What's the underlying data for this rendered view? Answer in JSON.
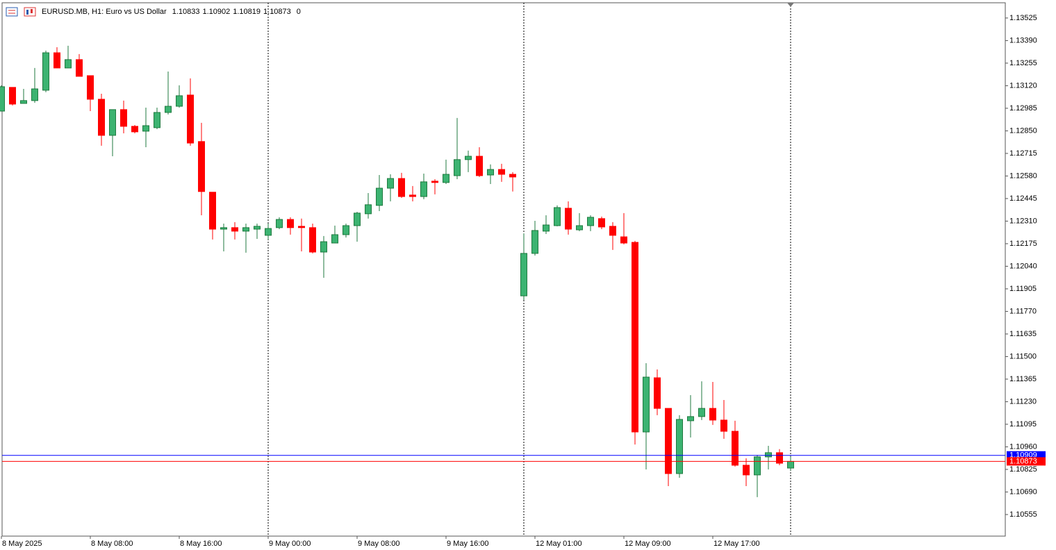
{
  "chart_data": {
    "type": "candlestick",
    "title": "EURUSD.MB, H1:  Euro vs US Dollar",
    "header_value": 0,
    "categories": [
      "8 May 2025",
      null,
      null,
      null,
      null,
      null,
      null,
      null,
      "8 May 08:00",
      null,
      null,
      null,
      null,
      null,
      null,
      null,
      "8 May 16:00",
      null,
      null,
      null,
      null,
      null,
      null,
      null,
      "9 May 00:00",
      null,
      null,
      null,
      null,
      null,
      null,
      null,
      "9 May 08:00",
      null,
      null,
      null,
      null,
      null,
      null,
      null,
      "9 May 16:00",
      null,
      null,
      null,
      null,
      null,
      null,
      null,
      "12 May 01:00",
      null,
      null,
      null,
      null,
      null,
      null,
      null,
      "12 May 09:00",
      null,
      null,
      null,
      null,
      null,
      null,
      null,
      "12 May 17:00",
      null,
      null,
      null,
      null,
      null,
      null,
      null
    ],
    "open": [
      1.12968,
      1.1311,
      1.13014,
      1.13031,
      1.13093,
      1.13317,
      1.13226,
      1.13276,
      1.1318,
      1.13039,
      1.12823,
      1.12977,
      1.12877,
      1.12848,
      1.12869,
      1.1296,
      1.12997,
      1.13064,
      1.12786,
      1.12483,
      1.12262,
      1.12271,
      1.1225,
      1.12262,
      1.12225,
      1.12271,
      1.1232,
      1.12279,
      1.12271,
      1.12125,
      1.12179,
      1.12229,
      1.12283,
      1.12354,
      1.12404,
      1.12507,
      1.12565,
      1.12466,
      1.12457,
      1.12549,
      1.12541,
      1.12582,
      1.12678,
      1.12698,
      1.12586,
      1.12619,
      1.1259,
      1.11863,
      1.12117,
      1.1225,
      1.12283,
      1.12387,
      1.12258,
      1.12283,
      1.12325,
      1.12279,
      1.12216,
      1.12183,
      1.11049,
      1.11373,
      1.1119,
      1.108,
      1.11116,
      1.11141,
      1.1119,
      1.1112,
      1.11053,
      1.1085,
      1.10792,
      1.109,
      1.10925,
      1.10833
    ],
    "high": [
      1.13122,
      1.1311,
      1.13101,
      1.13226,
      1.1333,
      1.1335,
      1.13359,
      1.13309,
      1.1318,
      1.13072,
      1.12977,
      1.13031,
      1.12885,
      1.12989,
      1.12989,
      1.13205,
      1.13122,
      1.13164,
      1.12898,
      1.12483,
      1.12295,
      1.12304,
      1.12295,
      1.12295,
      1.12295,
      1.12333,
      1.12333,
      1.12325,
      1.12295,
      1.12221,
      1.12283,
      1.12295,
      1.12366,
      1.12478,
      1.12586,
      1.1259,
      1.12599,
      1.1252,
      1.12594,
      1.12561,
      1.12678,
      1.12927,
      1.12732,
      1.12752,
      1.12649,
      1.12653,
      1.12603,
      1.12237,
      1.12312,
      1.12345,
      1.12404,
      1.12428,
      1.12358,
      1.12345,
      1.12337,
      1.12304,
      1.12358,
      1.12192,
      1.1146,
      1.11423,
      1.1119,
      1.11149,
      1.11269,
      1.11352,
      1.11348,
      1.1124,
      1.11116,
      1.10891,
      1.10912,
      1.10966,
      1.10946,
      1.10902
    ],
    "low": [
      1.12968,
      1.13002,
      1.13014,
      1.13018,
      1.13081,
      1.13226,
      1.13226,
      1.13176,
      1.12968,
      1.12761,
      1.12698,
      1.12835,
      1.12835,
      1.12752,
      1.1286,
      1.12948,
      1.12989,
      1.12761,
      1.12345,
      1.122,
      1.12129,
      1.122,
      1.12121,
      1.12204,
      1.122,
      1.12262,
      1.12229,
      1.12129,
      1.12117,
      1.11971,
      1.12179,
      1.12212,
      1.12187,
      1.12325,
      1.1237,
      1.12428,
      1.12449,
      1.12428,
      1.12441,
      1.1247,
      1.12532,
      1.12561,
      1.12603,
      1.12574,
      1.12532,
      1.12545,
      1.12487,
      1.11838,
      1.12104,
      1.12233,
      1.12279,
      1.12229,
      1.1225,
      1.1225,
      1.12262,
      1.12138,
      1.12171,
      1.10974,
      1.10825,
      1.11149,
      1.10725,
      1.10775,
      1.11016,
      1.1112,
      1.11091,
      1.11008,
      1.10842,
      1.10725,
      1.10659,
      1.10825,
      1.1085,
      1.10819
    ],
    "close": [
      1.13114,
      1.1301,
      1.13031,
      1.13101,
      1.13317,
      1.13226,
      1.13276,
      1.13176,
      1.13039,
      1.12823,
      1.12977,
      1.12877,
      1.12844,
      1.12881,
      1.1296,
      1.12997,
      1.1306,
      1.12777,
      1.12487,
      1.12262,
      1.12271,
      1.1225,
      1.12271,
      1.12279,
      1.12266,
      1.1232,
      1.12271,
      1.12271,
      1.12125,
      1.12187,
      1.12229,
      1.12283,
      1.12358,
      1.12408,
      1.12507,
      1.12565,
      1.12457,
      1.12457,
      1.12545,
      1.12541,
      1.1259,
      1.12678,
      1.12698,
      1.12582,
      1.12619,
      1.1259,
      1.12574,
      1.12117,
      1.12254,
      1.12287,
      1.12391,
      1.12262,
      1.12283,
      1.12333,
      1.12275,
      1.12225,
      1.12179,
      1.11049,
      1.11377,
      1.1119,
      1.108,
      1.11124,
      1.11141,
      1.1119,
      1.1112,
      1.11053,
      1.1085,
      1.10792,
      1.109,
      1.10925,
      1.10862,
      1.10873
    ],
    "up_color": "#3cb371",
    "up_edge_color": "#1f7a3f",
    "down_color": "#ff0000",
    "ylim": [
      1.10426,
      1.13616
    ],
    "yticks": [
      1.13525,
      {
        "value": 1.1339,
        "label": "1.13390"
      },
      1.13255,
      {
        "value": 1.1312,
        "label": "1.13120"
      },
      1.12985,
      {
        "value": 1.1285,
        "label": "1.12850"
      },
      1.12715,
      {
        "value": 1.1258,
        "label": "1.12580"
      },
      1.12445,
      {
        "value": 1.1231,
        "label": "1.12310"
      },
      1.12175,
      {
        "value": 1.1204,
        "label": "1.12040"
      },
      1.11905,
      {
        "value": 1.1177,
        "label": "1.11770"
      },
      1.11635,
      {
        "value": 1.115,
        "label": "1.11500"
      },
      1.11365,
      {
        "value": 1.1123,
        "label": "1.11230"
      },
      1.11095,
      {
        "value": 1.1096,
        "label": "1.10960"
      },
      1.10825,
      {
        "value": 1.1069,
        "label": "1.10690"
      },
      1.10555
    ],
    "price_lines": [
      {
        "value": 1.10909,
        "color": "#0000ff"
      },
      {
        "value": 1.10873,
        "color": "#ff0000"
      }
    ]
  }
}
